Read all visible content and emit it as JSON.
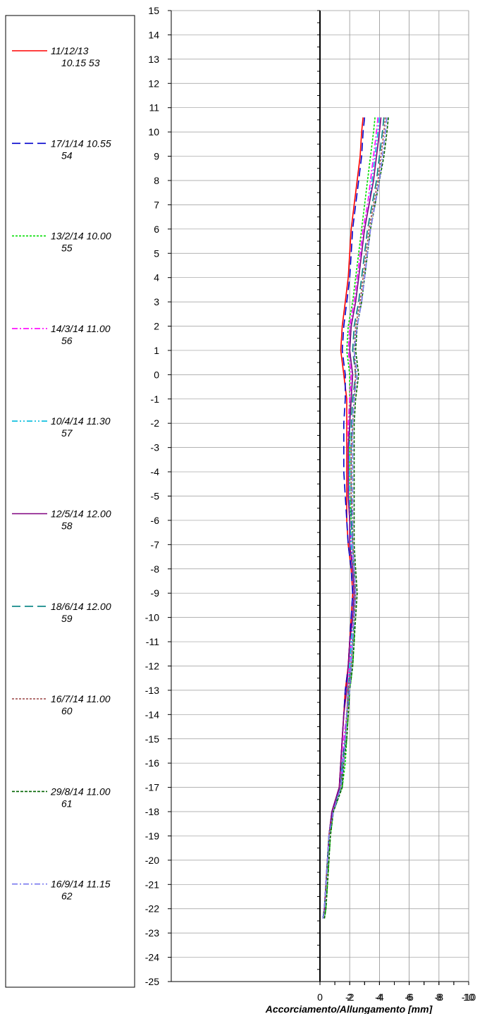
{
  "chart_data": {
    "type": "line",
    "title": "",
    "xlabel": "Accorciamento/Allungamento [mm]",
    "ylabel": "",
    "xlim": [
      -10,
      10
    ],
    "ylim": [
      -25,
      15
    ],
    "x_ticks": [
      -10,
      -8,
      -6,
      -4,
      -2,
      0,
      2,
      4,
      6,
      8,
      10
    ],
    "y_ticks": [
      15,
      14,
      13,
      12,
      11,
      10,
      9,
      8,
      7,
      6,
      5,
      4,
      3,
      2,
      1,
      0,
      -1,
      -2,
      -3,
      -4,
      -5,
      -6,
      -7,
      -8,
      -9,
      -10,
      -11,
      -12,
      -13,
      -14,
      -15,
      -16,
      -17,
      -18,
      -19,
      -20,
      -21,
      -22,
      -23,
      -24,
      -25
    ],
    "grid": true,
    "legend_position": "left",
    "cut_off_left_tick": "0",
    "depth": [
      10.6,
      10.0,
      9.0,
      8.0,
      7.0,
      6.0,
      5.0,
      4.0,
      3.0,
      2.0,
      1.0,
      0.0,
      -1.0,
      -2.0,
      -3.0,
      -4.0,
      -5.0,
      -6.0,
      -7.0,
      -8.0,
      -9.0,
      -10.0,
      -11.0,
      -12.0,
      -13.0,
      -14.0,
      -15.0,
      -16.0,
      -17.0,
      -18.0,
      -19.0,
      -20.0,
      -21.0,
      -22.0,
      -22.4
    ],
    "series": [
      {
        "name": "11/12/13 10.15 53",
        "color": "#ff0000",
        "dash": "",
        "values": [
          2.9,
          2.8,
          2.7,
          2.5,
          2.3,
          2.1,
          2.0,
          1.9,
          1.7,
          1.5,
          1.4,
          1.6,
          1.8,
          1.8,
          1.8,
          1.8,
          1.8,
          1.8,
          1.9,
          2.1,
          2.2,
          2.1,
          2.0,
          1.9,
          1.7,
          1.6,
          1.5,
          1.4,
          1.3,
          0.8,
          0.6,
          0.5,
          0.4,
          0.3,
          0.2
        ]
      },
      {
        "name": "17/1/14 10.55 54",
        "color": "#0000cc",
        "dash": "12,6",
        "values": [
          3.0,
          2.9,
          2.8,
          2.6,
          2.4,
          2.2,
          2.1,
          2.0,
          1.8,
          1.6,
          1.5,
          1.7,
          1.7,
          1.6,
          1.6,
          1.6,
          1.7,
          1.8,
          1.9,
          2.1,
          2.2,
          2.1,
          2.0,
          1.9,
          1.7,
          1.6,
          1.5,
          1.4,
          1.3,
          0.8,
          0.6,
          0.5,
          0.4,
          0.3,
          0.2
        ]
      },
      {
        "name": "13/2/14 10.00 55",
        "color": "#00dd00",
        "dash": "3,2",
        "values": [
          3.7,
          3.6,
          3.4,
          3.2,
          3.0,
          2.8,
          2.6,
          2.4,
          2.2,
          1.9,
          1.8,
          2.0,
          2.0,
          2.0,
          2.0,
          2.0,
          2.0,
          2.1,
          2.2,
          2.3,
          2.4,
          2.3,
          2.3,
          2.2,
          2.0,
          1.9,
          1.8,
          1.7,
          1.5,
          0.9,
          0.7,
          0.6,
          0.5,
          0.4,
          0.3
        ]
      },
      {
        "name": "14/3/14 11.00 56",
        "color": "#ff00ff",
        "dash": "8,3,2,3",
        "values": [
          3.9,
          3.8,
          3.6,
          3.4,
          3.2,
          2.9,
          2.7,
          2.5,
          2.3,
          2.0,
          1.9,
          2.1,
          2.0,
          1.9,
          1.9,
          1.9,
          1.9,
          2.0,
          2.1,
          2.2,
          2.3,
          2.2,
          2.1,
          2.0,
          1.9,
          1.8,
          1.6,
          1.5,
          1.4,
          0.8,
          0.6,
          0.5,
          0.4,
          0.3,
          0.2
        ]
      },
      {
        "name": "10/4/14 11.30 57",
        "color": "#00bbdd",
        "dash": "8,3,2,3,2,3",
        "values": [
          4.0,
          3.9,
          3.7,
          3.5,
          3.3,
          3.0,
          2.8,
          2.6,
          2.4,
          2.1,
          2.0,
          2.2,
          2.1,
          2.0,
          2.0,
          2.0,
          2.0,
          2.0,
          2.1,
          2.2,
          2.3,
          2.2,
          2.1,
          2.0,
          1.9,
          1.8,
          1.7,
          1.5,
          1.4,
          0.8,
          0.6,
          0.5,
          0.4,
          0.3,
          0.2
        ]
      },
      {
        "name": "12/5/14 12.00 58",
        "color": "#800080",
        "dash": "",
        "values": [
          4.1,
          4.0,
          3.8,
          3.6,
          3.3,
          3.0,
          2.8,
          2.6,
          2.4,
          2.1,
          2.0,
          2.2,
          2.1,
          2.0,
          1.9,
          1.9,
          1.9,
          2.0,
          2.0,
          2.2,
          2.3,
          2.2,
          2.0,
          1.9,
          1.8,
          1.6,
          1.5,
          1.4,
          1.3,
          0.8,
          0.6,
          0.5,
          0.4,
          0.3,
          0.2
        ]
      },
      {
        "name": "18/6/14 12.00 59",
        "color": "#008080",
        "dash": "12,6",
        "values": [
          4.3,
          4.2,
          4.0,
          3.8,
          3.5,
          3.2,
          3.0,
          2.8,
          2.6,
          2.3,
          2.2,
          2.4,
          2.2,
          2.1,
          2.1,
          2.1,
          2.1,
          2.1,
          2.2,
          2.3,
          2.4,
          2.3,
          2.2,
          2.1,
          1.9,
          1.8,
          1.7,
          1.5,
          1.4,
          0.9,
          0.6,
          0.5,
          0.4,
          0.3,
          0.2
        ]
      },
      {
        "name": "16/7/14 11.00 60",
        "color": "#a05050",
        "dash": "3,2",
        "values": [
          4.4,
          4.3,
          4.1,
          3.9,
          3.6,
          3.3,
          3.1,
          2.9,
          2.7,
          2.4,
          2.3,
          2.4,
          2.3,
          2.2,
          2.1,
          2.1,
          2.1,
          2.2,
          2.2,
          2.3,
          2.4,
          2.3,
          2.2,
          2.1,
          1.9,
          1.8,
          1.7,
          1.6,
          1.4,
          0.9,
          0.6,
          0.5,
          0.4,
          0.3,
          0.2
        ]
      },
      {
        "name": "29/8/14 11.00 61",
        "color": "#006400",
        "dash": "4,2",
        "values": [
          4.6,
          4.5,
          4.3,
          4.0,
          3.7,
          3.4,
          3.2,
          3.0,
          2.8,
          2.5,
          2.4,
          2.6,
          2.4,
          2.3,
          2.3,
          2.3,
          2.3,
          2.3,
          2.3,
          2.4,
          2.5,
          2.4,
          2.3,
          2.2,
          2.0,
          1.9,
          1.8,
          1.6,
          1.5,
          0.9,
          0.7,
          0.6,
          0.5,
          0.4,
          0.3
        ]
      },
      {
        "name": "16/9/14 11.15 62",
        "color": "#7777ee",
        "dash": "8,3,2,3",
        "values": [
          4.5,
          4.4,
          4.2,
          4.0,
          3.7,
          3.4,
          3.2,
          3.0,
          2.8,
          2.5,
          2.3,
          2.5,
          2.3,
          2.2,
          2.2,
          2.2,
          2.2,
          2.2,
          2.2,
          2.3,
          2.4,
          2.3,
          2.2,
          2.1,
          2.0,
          1.8,
          1.7,
          1.6,
          1.4,
          0.9,
          0.6,
          0.5,
          0.4,
          0.3,
          0.2
        ]
      }
    ],
    "legend_labels": [
      [
        "11/12/13",
        "10.15 53"
      ],
      [
        "17/1/14 10.55",
        "54"
      ],
      [
        "13/2/14 10.00",
        "55"
      ],
      [
        "14/3/14 11.00",
        "56"
      ],
      [
        "10/4/14 11.30",
        "57"
      ],
      [
        "12/5/14 12.00",
        "58"
      ],
      [
        "18/6/14 12.00",
        "59"
      ],
      [
        "16/7/14 11.00",
        "60"
      ],
      [
        "29/8/14 11.00",
        "61"
      ],
      [
        "16/9/14 11.15",
        "62"
      ]
    ]
  }
}
